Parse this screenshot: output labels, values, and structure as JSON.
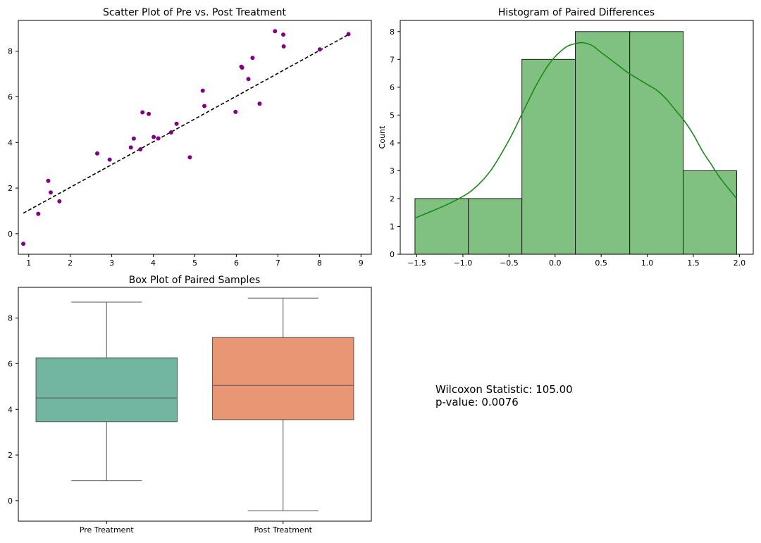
{
  "chart_data": [
    {
      "type": "scatter",
      "title": "Scatter Plot of Pre vs. Post Treatment",
      "xlabel": "",
      "ylabel": "",
      "xlim": [
        0.75,
        9.25
      ],
      "ylim": [
        -0.9,
        9.35
      ],
      "xticks": [
        1,
        2,
        3,
        4,
        5,
        6,
        7,
        8,
        9
      ],
      "yticks": [
        0,
        2,
        4,
        6,
        8
      ],
      "point_color": "#800080",
      "points": [
        {
          "x": 0.87,
          "y": -0.44
        },
        {
          "x": 1.23,
          "y": 0.87
        },
        {
          "x": 1.47,
          "y": 2.32
        },
        {
          "x": 1.53,
          "y": 1.81
        },
        {
          "x": 1.74,
          "y": 1.42
        },
        {
          "x": 2.65,
          "y": 3.52
        },
        {
          "x": 2.95,
          "y": 3.25
        },
        {
          "x": 3.46,
          "y": 3.78
        },
        {
          "x": 3.53,
          "y": 4.17
        },
        {
          "x": 3.69,
          "y": 3.7
        },
        {
          "x": 3.74,
          "y": 5.32
        },
        {
          "x": 3.89,
          "y": 5.25
        },
        {
          "x": 4.01,
          "y": 4.24
        },
        {
          "x": 4.12,
          "y": 4.18
        },
        {
          "x": 4.43,
          "y": 4.44
        },
        {
          "x": 4.56,
          "y": 4.82
        },
        {
          "x": 4.88,
          "y": 3.35
        },
        {
          "x": 5.19,
          "y": 6.27
        },
        {
          "x": 5.23,
          "y": 5.6
        },
        {
          "x": 5.98,
          "y": 5.34
        },
        {
          "x": 6.12,
          "y": 7.32
        },
        {
          "x": 6.14,
          "y": 7.28
        },
        {
          "x": 6.29,
          "y": 6.78
        },
        {
          "x": 6.39,
          "y": 7.71
        },
        {
          "x": 6.56,
          "y": 5.7
        },
        {
          "x": 6.93,
          "y": 8.88
        },
        {
          "x": 7.13,
          "y": 8.73
        },
        {
          "x": 7.14,
          "y": 8.21
        },
        {
          "x": 8.01,
          "y": 8.08
        },
        {
          "x": 8.7,
          "y": 8.75
        }
      ],
      "line": {
        "x": [
          0.87,
          8.7
        ],
        "y": [
          0.9,
          8.73
        ],
        "style": "dashed",
        "color": "#000000"
      }
    },
    {
      "type": "bar",
      "subtype": "histogram",
      "title": "Histogram of Paired Differences",
      "xlabel": "",
      "ylabel": "Count",
      "xlim": [
        -1.68,
        2.15
      ],
      "ylim": [
        0,
        8.4
      ],
      "xticks": [
        -1.5,
        -1.0,
        -0.5,
        0.0,
        0.5,
        1.0,
        1.5,
        2.0
      ],
      "xtick_labels": [
        "−1.5",
        "−1.0",
        "−0.5",
        "0.0",
        "0.5",
        "1.0",
        "1.5",
        "2.0"
      ],
      "yticks": [
        0,
        1,
        2,
        3,
        4,
        5,
        6,
        7,
        8
      ],
      "bin_edges": [
        -1.52,
        -0.94,
        -0.36,
        0.22,
        0.81,
        1.39,
        1.97
      ],
      "counts": [
        2,
        2,
        7,
        8,
        8,
        3
      ],
      "bar_color": "#80c080",
      "kde_color": "#1a8a1a",
      "kde": {
        "x": [
          -1.52,
          -1.3,
          -1.1,
          -0.9,
          -0.7,
          -0.5,
          -0.35,
          -0.2,
          -0.05,
          0.1,
          0.2,
          0.3,
          0.4,
          0.5,
          0.6,
          0.7,
          0.8,
          0.9,
          1.0,
          1.1,
          1.2,
          1.3,
          1.4,
          1.5,
          1.6,
          1.7,
          1.8,
          1.97
        ],
        "y": [
          1.3,
          1.6,
          1.9,
          2.3,
          3.0,
          4.1,
          5.1,
          6.1,
          6.9,
          7.4,
          7.55,
          7.6,
          7.5,
          7.25,
          7.0,
          6.75,
          6.5,
          6.3,
          6.1,
          5.9,
          5.6,
          5.2,
          4.8,
          4.3,
          3.7,
          3.2,
          2.7,
          2.0
        ]
      }
    },
    {
      "type": "box",
      "title": "Box Plot of Paired Samples",
      "xlabel": "",
      "ylabel": "",
      "ylim": [
        -0.9,
        9.35
      ],
      "yticks": [
        0,
        2,
        4,
        6,
        8
      ],
      "categories": [
        "Pre Treatment",
        "Post Treatment"
      ],
      "boxes": [
        {
          "name": "Pre Treatment",
          "whisker_low": 0.87,
          "q1": 3.46,
          "median": 4.5,
          "q3": 6.26,
          "whisker_high": 8.7,
          "color": "#72b6a1"
        },
        {
          "name": "Post Treatment",
          "whisker_low": -0.44,
          "q1": 3.55,
          "median": 5.05,
          "q3": 7.15,
          "whisker_high": 8.88,
          "color": "#e99675"
        }
      ]
    }
  ],
  "stats": {
    "line1": "Wilcoxon Statistic: 105.00",
    "line2": "p-value: 0.0076"
  }
}
